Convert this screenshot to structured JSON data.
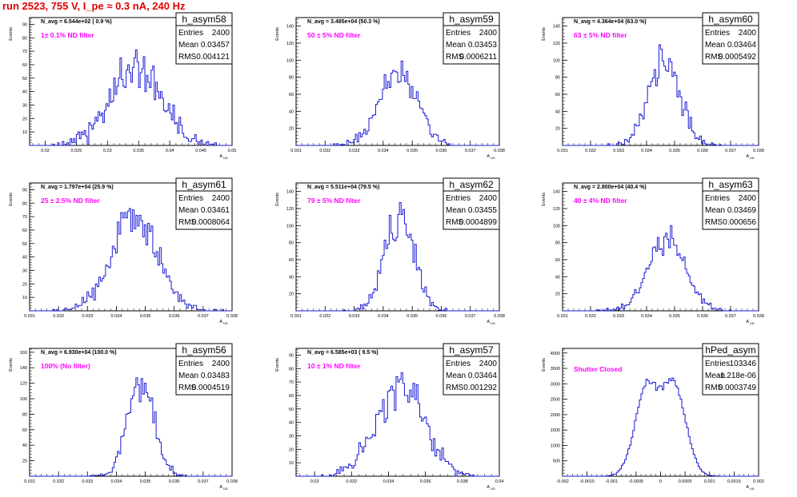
{
  "header": {
    "run_title": "run 2523,   755 V, I_pe ≈ 0.3 nA, 240 Hz"
  },
  "colors": {
    "hist_line": "#1b1bd6",
    "annotation": "#ff00ff",
    "title_red": "#e00000",
    "frame": "#000000"
  },
  "labels": {
    "entries": "Entries",
    "mean": "Mean",
    "rms": "RMS",
    "y_axis": "Events",
    "x_axis": "A",
    "x_axis_sub": "UD"
  },
  "chart_data": [
    {
      "type": "histogram",
      "name": "h_asym58",
      "navg": "N_avg = 6.544e+02 ( 0.9 %)",
      "annotation": "1± 0.1% ND filter",
      "entries": "2400",
      "mean_text": "0.03457",
      "rms_text": "0.004121",
      "mean": 0.03457,
      "rms": 0.004121,
      "total": 2400,
      "xlim": [
        0.0175,
        0.05
      ],
      "ylim": [
        0,
        95
      ],
      "xticks": [
        0.02,
        0.025,
        0.03,
        0.035,
        0.04,
        0.045,
        0.05
      ],
      "xtick_labels": [
        "0.02",
        "0.025",
        "0.03",
        "0.035",
        "0.04",
        "0.045",
        "0.05"
      ],
      "yticks": [
        10,
        20,
        30,
        40,
        50,
        60,
        70,
        80,
        90
      ],
      "ytick_labels": [
        "10",
        "20",
        "30",
        "40",
        "50",
        "60",
        "70",
        "80",
        "90"
      ],
      "bins": 130,
      "seed": 11
    },
    {
      "type": "histogram",
      "name": "h_asym59",
      "navg": "N_avg = 3.485e+04 (50.3 %)",
      "annotation": "50 ± 5% ND filter",
      "entries": "2400",
      "mean_text": "0.03453",
      "rms_text": "0.0006211",
      "mean": 0.03453,
      "rms": 0.0006211,
      "total": 2400,
      "xlim": [
        0.031,
        0.038
      ],
      "ylim": [
        0,
        150
      ],
      "xticks": [
        0.031,
        0.032,
        0.033,
        0.034,
        0.035,
        0.036,
        0.037,
        0.038
      ],
      "xtick_labels": [
        "0.031",
        "0.032",
        "0.033",
        "0.034",
        "0.035",
        "0.036",
        "0.037",
        "0.038"
      ],
      "yticks": [
        20,
        40,
        60,
        80,
        100,
        120,
        140
      ],
      "ytick_labels": [
        "20",
        "40",
        "60",
        "80",
        "100",
        "120",
        "140"
      ],
      "bins": 120,
      "seed": 22
    },
    {
      "type": "histogram",
      "name": "h_asym60",
      "navg": "N_avg = 4.364e+04 (63.0 %)",
      "annotation": "63 ± 5% ND filter",
      "entries": "2400",
      "mean_text": "0.03464",
      "rms_text": "0.0005492",
      "mean": 0.03464,
      "rms": 0.0005492,
      "total": 2400,
      "xlim": [
        0.031,
        0.038
      ],
      "ylim": [
        0,
        150
      ],
      "xticks": [
        0.031,
        0.032,
        0.033,
        0.034,
        0.035,
        0.036,
        0.037,
        0.038
      ],
      "xtick_labels": [
        "0.031",
        "0.032",
        "0.033",
        "0.034",
        "0.035",
        "0.036",
        "0.037",
        "0.038"
      ],
      "yticks": [
        20,
        40,
        60,
        80,
        100,
        120,
        140
      ],
      "ytick_labels": [
        "20",
        "40",
        "60",
        "80",
        "100",
        "120",
        "140"
      ],
      "bins": 120,
      "seed": 33
    },
    {
      "type": "histogram",
      "name": "h_asym61",
      "navg": "N_avg = 1.797e+04 (25.9 %)",
      "annotation": "25 ± 2.5% ND filter",
      "entries": "2400",
      "mean_text": "0.03461",
      "rms_text": "0.0008064",
      "mean": 0.03461,
      "rms": 0.0008064,
      "total": 2400,
      "xlim": [
        0.031,
        0.038
      ],
      "ylim": [
        0,
        95
      ],
      "xticks": [
        0.031,
        0.032,
        0.033,
        0.034,
        0.035,
        0.036,
        0.037,
        0.038
      ],
      "xtick_labels": [
        "0.031",
        "0.032",
        "0.033",
        "0.034",
        "0.035",
        "0.036",
        "0.037",
        "0.038"
      ],
      "yticks": [
        10,
        20,
        30,
        40,
        50,
        60,
        70,
        80,
        90
      ],
      "ytick_labels": [
        "10",
        "20",
        "30",
        "40",
        "50",
        "60",
        "70",
        "80",
        "90"
      ],
      "bins": 120,
      "seed": 44
    },
    {
      "type": "histogram",
      "name": "h_asym62",
      "navg": "N_avg = 5.511e+04 (79.5 %)",
      "annotation": "79 ± 5% ND filter",
      "entries": "2400",
      "mean_text": "0.03455",
      "rms_text": "0.0004899",
      "mean": 0.03455,
      "rms": 0.0004899,
      "total": 2400,
      "xlim": [
        0.031,
        0.038
      ],
      "ylim": [
        0,
        150
      ],
      "xticks": [
        0.031,
        0.032,
        0.033,
        0.034,
        0.035,
        0.036,
        0.037,
        0.038
      ],
      "xtick_labels": [
        "0.031",
        "0.032",
        "0.033",
        "0.034",
        "0.035",
        "0.036",
        "0.037",
        "0.038"
      ],
      "yticks": [
        20,
        40,
        60,
        80,
        100,
        120,
        140
      ],
      "ytick_labels": [
        "20",
        "40",
        "60",
        "80",
        "100",
        "120",
        "140"
      ],
      "bins": 120,
      "seed": 55
    },
    {
      "type": "histogram",
      "name": "h_asym63",
      "navg": "N_avg = 2.800e+04 (40.4 %)",
      "annotation": "40 ± 4% ND filter",
      "entries": "2400",
      "mean_text": "0.03469",
      "rms_text": "0.000656",
      "mean": 0.03469,
      "rms": 0.000656,
      "total": 2400,
      "xlim": [
        0.031,
        0.038
      ],
      "ylim": [
        0,
        150
      ],
      "xticks": [
        0.031,
        0.032,
        0.033,
        0.034,
        0.035,
        0.036,
        0.037,
        0.038
      ],
      "xtick_labels": [
        "0.031",
        "0.032",
        "0.033",
        "0.034",
        "0.035",
        "0.036",
        "0.037",
        "0.038"
      ],
      "yticks": [
        20,
        40,
        60,
        80,
        100,
        120,
        140
      ],
      "ytick_labels": [
        "20",
        "40",
        "60",
        "80",
        "100",
        "120",
        "140"
      ],
      "bins": 120,
      "seed": 66
    },
    {
      "type": "histogram",
      "name": "h_asym56",
      "navg": "N_avg = 6.930e+04 (100.0 %)",
      "annotation": "100% (No filter)",
      "entries": "2400",
      "mean_text": "0.03483",
      "rms_text": "0.0004519",
      "mean": 0.03483,
      "rms": 0.0004519,
      "total": 2400,
      "xlim": [
        0.031,
        0.038
      ],
      "ylim": [
        0,
        165
      ],
      "xticks": [
        0.031,
        0.032,
        0.033,
        0.034,
        0.035,
        0.036,
        0.037,
        0.038
      ],
      "xtick_labels": [
        "0.031",
        "0.032",
        "0.033",
        "0.034",
        "0.035",
        "0.036",
        "0.037",
        "0.038"
      ],
      "yticks": [
        20,
        40,
        60,
        80,
        100,
        120,
        140,
        160
      ],
      "ytick_labels": [
        "20",
        "40",
        "60",
        "80",
        "100",
        "120",
        "140",
        "160"
      ],
      "bins": 120,
      "seed": 77
    },
    {
      "type": "histogram",
      "name": "h_asym57",
      "navg": "N_avg = 6.585e+03 ( 9.5 %)",
      "annotation": "10 ± 1% ND filter",
      "entries": "2400",
      "mean_text": "0.03464",
      "rms_text": "0.001292",
      "mean": 0.03464,
      "rms": 0.001292,
      "total": 2400,
      "xlim": [
        0.029,
        0.04
      ],
      "ylim": [
        0,
        95
      ],
      "xticks": [
        0.03,
        0.032,
        0.034,
        0.036,
        0.038,
        0.04
      ],
      "xtick_labels": [
        "0.03",
        "0.032",
        "0.034",
        "0.036",
        "0.038",
        "0.04"
      ],
      "yticks": [
        10,
        20,
        30,
        40,
        50,
        60,
        70,
        80,
        90
      ],
      "ytick_labels": [
        "10",
        "20",
        "30",
        "40",
        "50",
        "60",
        "70",
        "80",
        "90"
      ],
      "bins": 120,
      "seed": 88
    },
    {
      "type": "histogram",
      "name": "hPed_asym",
      "navg": "",
      "annotation": "Shutter Closed",
      "entries": "103346",
      "mean_text": "-1.218e-06",
      "rms_text": "0.0003749",
      "mean": 0,
      "rms": 0.0003749,
      "total": 103346,
      "bimodal": true,
      "xlim": [
        -0.002,
        0.002
      ],
      "ylim": [
        0,
        4150
      ],
      "xticks": [
        -0.002,
        -0.0015,
        -0.001,
        -0.0005,
        0,
        0.0005,
        0.001,
        0.0015,
        0.002
      ],
      "xtick_labels": [
        "-0.002",
        "-0.0015",
        "-0.001",
        "-0.0005",
        "0",
        "0.0005",
        "0.001",
        "0.0015",
        "0.002"
      ],
      "yticks": [
        500,
        1000,
        1500,
        2000,
        2500,
        3000,
        3500,
        4000
      ],
      "ytick_labels": [
        "500",
        "1000",
        "1500",
        "2000",
        "2500",
        "3000",
        "3500",
        "4000"
      ],
      "bins": 120,
      "seed": 99
    }
  ]
}
